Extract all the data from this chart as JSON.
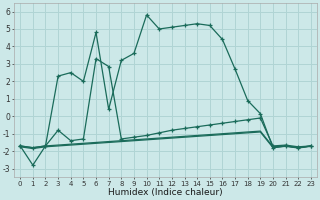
{
  "xlabel": "Humidex (Indice chaleur)",
  "x": [
    0,
    1,
    2,
    3,
    4,
    5,
    6,
    7,
    8,
    9,
    10,
    11,
    12,
    13,
    14,
    15,
    16,
    17,
    18,
    19,
    20,
    21,
    22,
    23
  ],
  "line1": [
    -1.7,
    -2.8,
    -1.7,
    2.3,
    2.5,
    2.0,
    4.8,
    0.4,
    3.2,
    3.6,
    5.8,
    5.0,
    5.1,
    5.2,
    5.3,
    5.2,
    4.4,
    2.7,
    0.9,
    0.15,
    -1.8,
    -1.7,
    -1.8,
    -1.7
  ],
  "line2": [
    -1.7,
    -1.8,
    -1.7,
    -0.8,
    -1.4,
    -1.3,
    3.3,
    2.85,
    -1.3,
    -1.2,
    -1.1,
    -0.95,
    -0.8,
    -0.7,
    -0.6,
    -0.5,
    -0.4,
    -0.3,
    -0.2,
    -0.1,
    -1.7,
    -1.65,
    -1.75,
    -1.7
  ],
  "line3": [
    -1.7,
    -1.8,
    -1.7,
    -1.65,
    -1.6,
    -1.55,
    -1.5,
    -1.45,
    -1.4,
    -1.35,
    -1.3,
    -1.25,
    -1.2,
    -1.15,
    -1.1,
    -1.05,
    -1.0,
    -0.95,
    -0.9,
    -0.85,
    -1.75,
    -1.7,
    -1.8,
    -1.7
  ],
  "line4": [
    -1.75,
    -1.85,
    -1.75,
    -1.7,
    -1.65,
    -1.6,
    -1.55,
    -1.5,
    -1.45,
    -1.4,
    -1.35,
    -1.3,
    -1.25,
    -1.2,
    -1.15,
    -1.1,
    -1.05,
    -1.0,
    -0.95,
    -0.9,
    -1.8,
    -1.72,
    -1.82,
    -1.72
  ],
  "bg_color": "#cce8e8",
  "grid_color": "#b0d4d4",
  "line_color": "#1a6b5a",
  "ylim": [
    -3.5,
    6.5
  ],
  "yticks": [
    -3,
    -2,
    -1,
    0,
    1,
    2,
    3,
    4,
    5,
    6
  ],
  "xlim": [
    -0.5,
    23.5
  ]
}
